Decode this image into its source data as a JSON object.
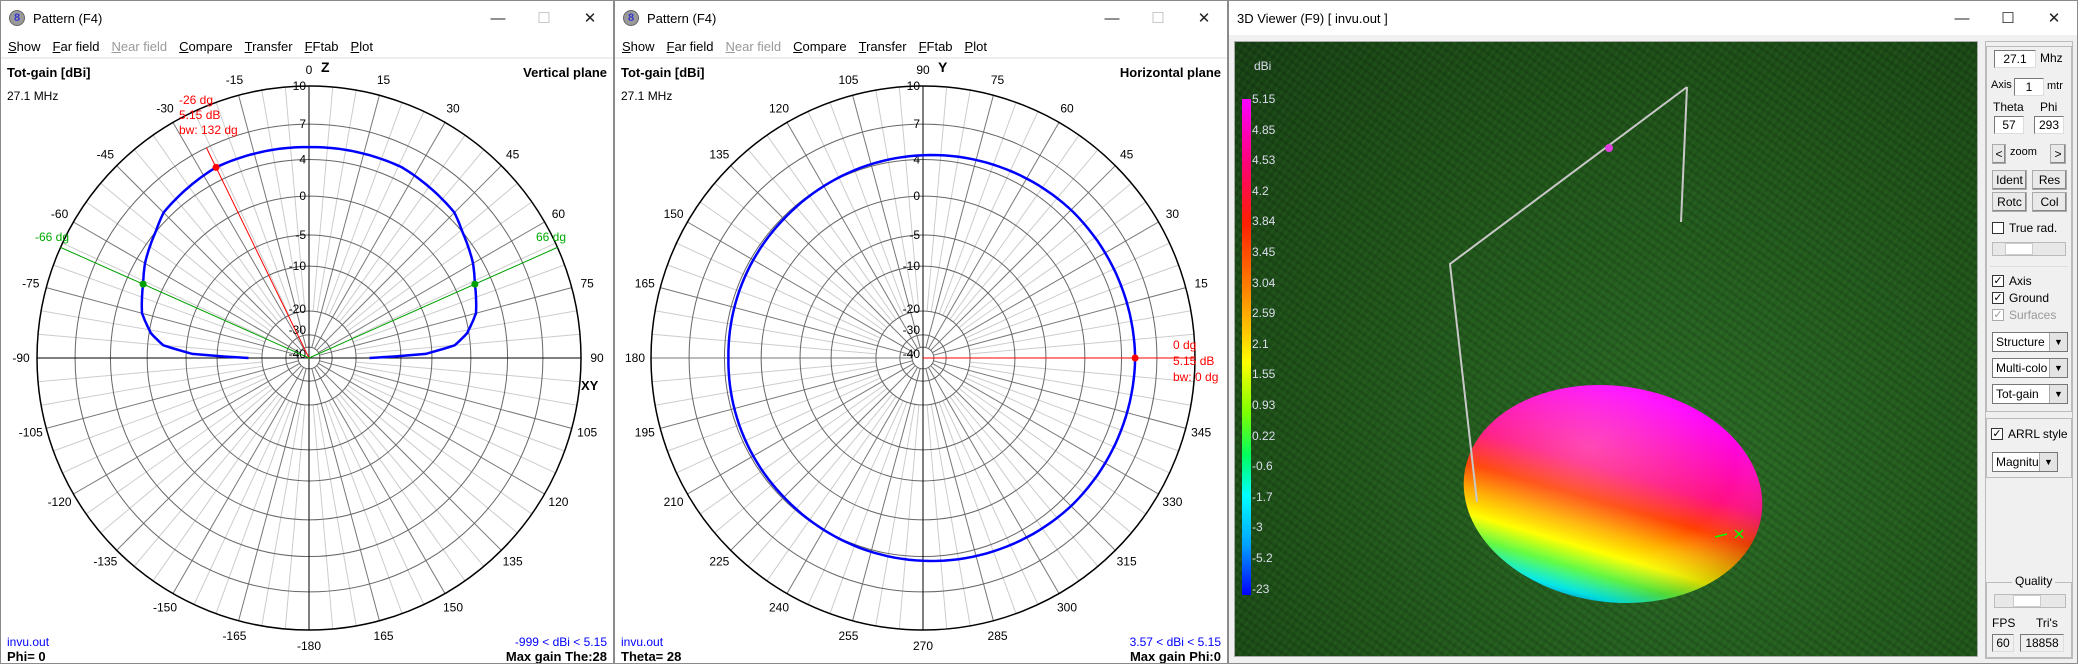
{
  "left_window": {
    "title": "Pattern   (F4)",
    "menu": [
      {
        "label": "Show",
        "enabled": true
      },
      {
        "label": "Far field",
        "enabled": true
      },
      {
        "label": "Near field",
        "enabled": false
      },
      {
        "label": "Compare",
        "enabled": true
      },
      {
        "label": "Transfer",
        "enabled": true
      },
      {
        "label": "FFtab",
        "enabled": true
      },
      {
        "label": "Plot",
        "enabled": true
      }
    ],
    "quantity": "Tot-gain [dBi]",
    "plane": "Vertical plane",
    "freq": "27.1 MHz",
    "file": "invu.out",
    "range": "-999 < dBi < 5.15",
    "cut": "Phi= 0",
    "maxgain": "Max gain The:28",
    "axis_top": "Z",
    "axis_right": "XY",
    "max_marker": {
      "angle": "-26 dg",
      "gain": "5.15 dB",
      "bw": "bw: 132 dg"
    },
    "bw_left": "-66 dg",
    "bw_right": "66 dg"
  },
  "mid_window": {
    "title": "Pattern   (F4)",
    "menu": [
      {
        "label": "Show",
        "enabled": true
      },
      {
        "label": "Far field",
        "enabled": true
      },
      {
        "label": "Near field",
        "enabled": false
      },
      {
        "label": "Compare",
        "enabled": true
      },
      {
        "label": "Transfer",
        "enabled": true
      },
      {
        "label": "FFtab",
        "enabled": true
      },
      {
        "label": "Plot",
        "enabled": true
      }
    ],
    "quantity": "Tot-gain [dBi]",
    "plane": "Horizontal plane",
    "freq": "27.1 MHz",
    "file": "invu.out",
    "range": "3.57 < dBi < 5.15",
    "cut": "Theta= 28",
    "maxgain": "Max gain Phi:0",
    "axis_top": "Y",
    "max_marker": {
      "angle": "0 dg",
      "gain": "5.15 dB",
      "bw": "bw: 0 dg"
    }
  },
  "viewer": {
    "title": "3D Viewer (F9)    [  invu.out ]",
    "legend_unit": "dBi",
    "legend_values": [
      "5.15",
      "4.85",
      "4.53",
      "4.2",
      "3.84",
      "3.45",
      "3.04",
      "2.59",
      "2.1",
      "1.55",
      "0.93",
      "0.22",
      "-0.6",
      "-1.7",
      "-3",
      "-5.2",
      "-23"
    ],
    "freq_value": "27.1",
    "freq_unit": "Mhz",
    "axis_label": "Axis",
    "axis_value": "1",
    "axis_unit": "mtr",
    "theta_label": "Theta",
    "phi_label": "Phi",
    "theta_value": "57",
    "phi_value": "293",
    "zoom_label": "zoom",
    "zoom_prev": "<",
    "zoom_next": ">",
    "ident": "Ident",
    "res": "Res",
    "rotc": "Rotc",
    "col": "Col",
    "true_rad": {
      "label": "True rad.",
      "checked": false
    },
    "axis_chk": {
      "label": "Axis",
      "checked": true
    },
    "ground_chk": {
      "label": "Ground",
      "checked": true
    },
    "surfaces_chk": {
      "label": "Surfaces",
      "checked": true
    },
    "dd_structure": "Structure",
    "dd_color": "Multi-colo",
    "dd_quantity": "Tot-gain",
    "arrl": {
      "label": "ARRL style",
      "checked": true
    },
    "dd_mode": "Magnitud",
    "quality_label": "Quality",
    "fps_label": "FPS",
    "tris_label": "Tri's",
    "fps_value": "60",
    "tris_value": "18858"
  },
  "colors": {
    "pattern": "#0000ff",
    "max": "#ff0000",
    "bw": "#00a000"
  },
  "chart_data": [
    {
      "type": "polar",
      "title": "Vertical plane",
      "quantity": "Tot-gain [dBi]",
      "ring_labels": [
        10,
        7,
        4,
        0,
        -5,
        -10,
        -20,
        -30,
        -40
      ],
      "angle_labels": [
        "0",
        "15",
        "30",
        "45",
        "60",
        "75",
        "90",
        "105",
        "120",
        "135",
        "150",
        "165",
        "-180",
        "-165",
        "-150",
        "-135",
        "-120",
        "-105",
        "-90",
        "-75",
        "-60",
        "-45",
        "-30",
        "-15"
      ],
      "angles": [
        -90,
        -88,
        -85,
        -81,
        -75,
        -66,
        -60,
        -45,
        -26,
        -15,
        0,
        15,
        26,
        45,
        60,
        66,
        75,
        81,
        85,
        88,
        90
      ],
      "gains": [
        -17,
        -6,
        -2,
        -0.2,
        1.2,
        2.15,
        3.0,
        4.6,
        5.15,
        5.1,
        5.05,
        5.1,
        5.15,
        4.6,
        3.0,
        2.15,
        1.2,
        -0.2,
        -2,
        -6,
        -17
      ],
      "max": {
        "angle": -26,
        "gain": 5.15
      },
      "beamwidth": {
        "left": -66,
        "right": 66,
        "width": 132
      }
    },
    {
      "type": "polar",
      "title": "Horizontal plane",
      "quantity": "Tot-gain [dBi]",
      "ring_labels": [
        10,
        7,
        4,
        0,
        -5,
        -10,
        -20,
        -30,
        -40
      ],
      "angle_labels": [
        "",
        "15",
        "30",
        "45",
        "60",
        "75",
        "90",
        "105",
        "120",
        "135",
        "150",
        "165",
        "180",
        "195",
        "210",
        "225",
        "240",
        "255",
        "270",
        "285",
        "300",
        "315",
        "330",
        "345"
      ],
      "angles": [
        0,
        45,
        90,
        135,
        180,
        225,
        270,
        315,
        360
      ],
      "gains": [
        5.15,
        4.92,
        4.36,
        3.8,
        3.57,
        3.8,
        4.36,
        4.92,
        5.15
      ],
      "max": {
        "angle": 0,
        "gain": 5.15
      }
    }
  ]
}
